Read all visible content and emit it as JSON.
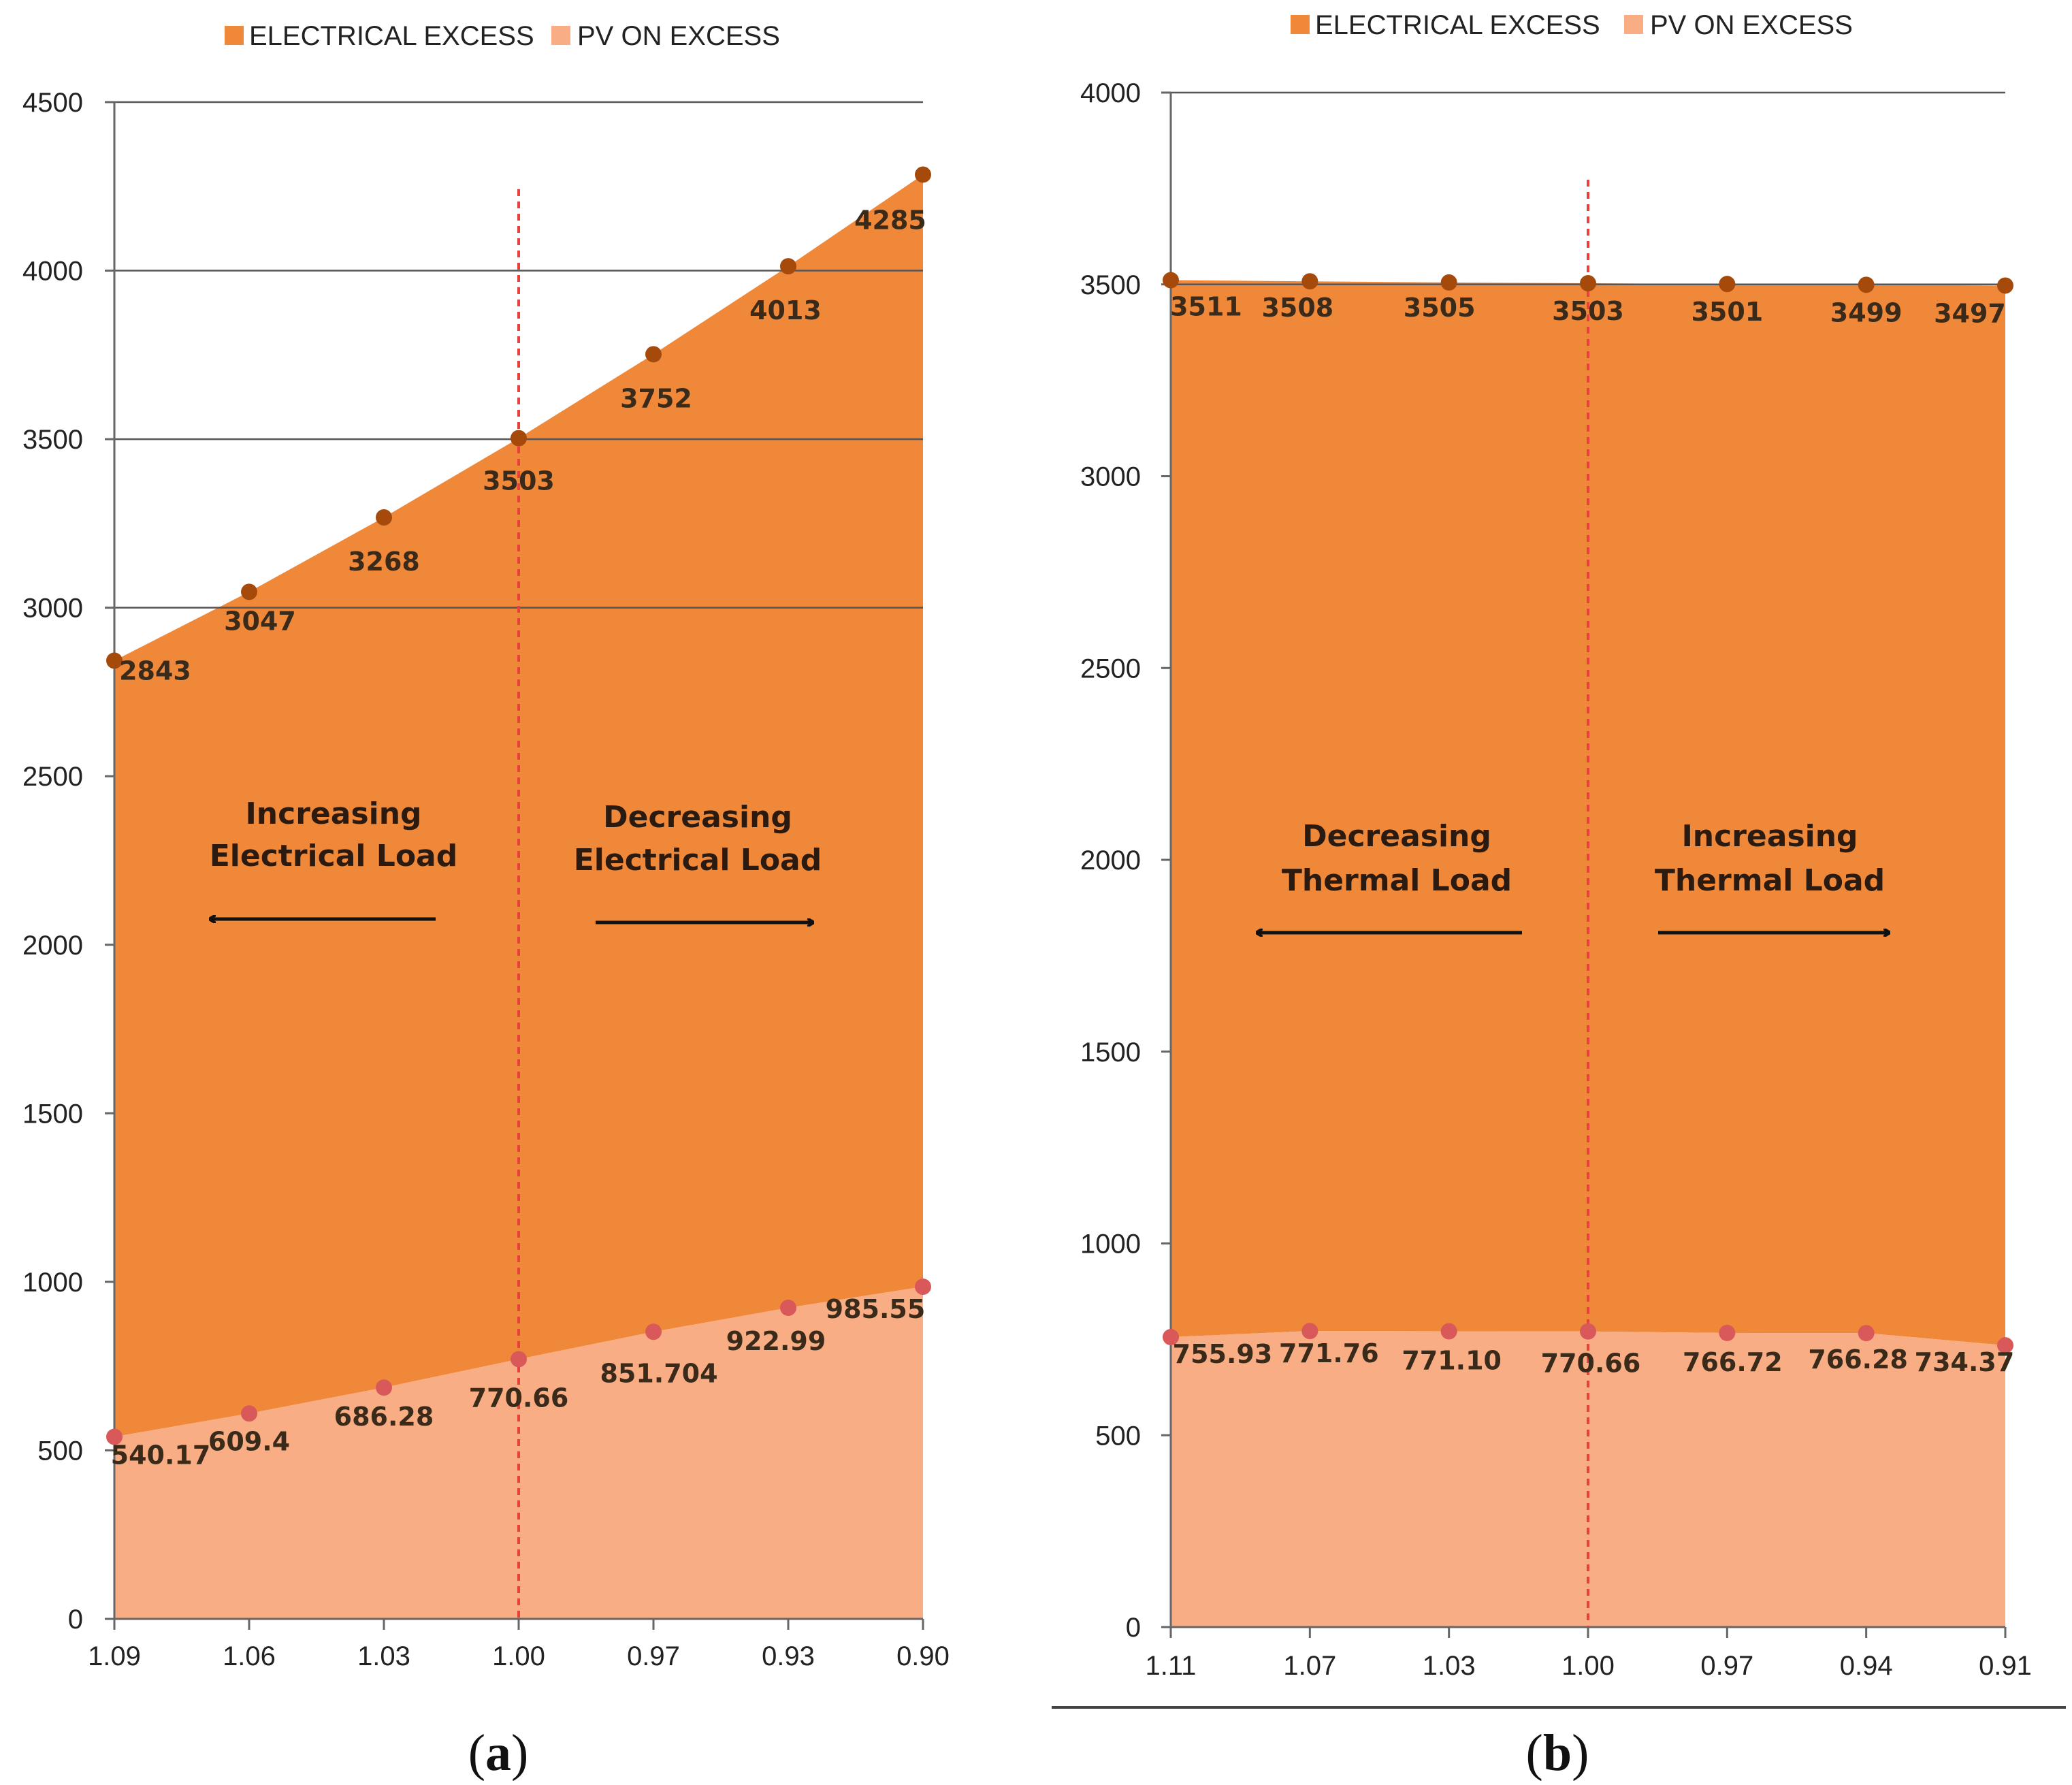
{
  "legend": {
    "electrical_excess": "ELECTRICAL EXCESS",
    "pv_on_excess": "PV ON EXCESS"
  },
  "colors": {
    "electrical_excess_fill": "#F0883A",
    "pv_on_excess_fill": "#F9AD84",
    "electrical_marker": "#A64A0C",
    "pv_marker": "#D9595A",
    "divider": "#E8403A",
    "axis": "#666666"
  },
  "chart_data": [
    {
      "panel": "a",
      "panel_label": "(a)",
      "panel_letter": "a",
      "type": "area",
      "title": "",
      "xlabel": "",
      "ylabel": "",
      "ylim": [
        0,
        4500
      ],
      "yticks": [
        0,
        500,
        1000,
        1500,
        2000,
        2500,
        3000,
        3500,
        4000,
        4500
      ],
      "categories": [
        "1.09",
        "1.06",
        "1.03",
        "1.00",
        "0.97",
        "0.93",
        "0.90"
      ],
      "series": [
        {
          "name": "ELECTRICAL EXCESS",
          "values": [
            2843,
            3047,
            3268,
            3503,
            3752,
            4013,
            4285
          ],
          "labels": [
            "2843",
            "3047",
            "3268",
            "3503",
            "3752",
            "4013",
            "4285"
          ]
        },
        {
          "name": "PV ON EXCESS",
          "values": [
            540.17,
            609.4,
            686.28,
            770.66,
            851.704,
            922.99,
            985.55
          ],
          "labels": [
            "540.17",
            "609.4",
            "686.28",
            "770.66",
            "851.704",
            "922.99",
            "985.55"
          ]
        }
      ],
      "gridlines_y": [
        3000,
        3500,
        4000,
        4500
      ],
      "divider_at": "1.00",
      "annotations": {
        "left": [
          "Increasing",
          "Electrical Load"
        ],
        "right": [
          "Decreasing",
          "Electrical Load"
        ]
      }
    },
    {
      "panel": "b",
      "panel_label": "(b)",
      "panel_letter": "b",
      "type": "area",
      "title": "",
      "xlabel": "",
      "ylabel": "",
      "ylim": [
        0,
        4000
      ],
      "yticks": [
        0,
        500,
        1000,
        1500,
        2000,
        2500,
        3000,
        3500,
        4000
      ],
      "categories": [
        "1.11",
        "1.07",
        "1.03",
        "1.00",
        "0.97",
        "0.94",
        "0.91"
      ],
      "series": [
        {
          "name": "ELECTRICAL EXCESS",
          "values": [
            3511,
            3508,
            3505,
            3503,
            3501,
            3499,
            3497
          ],
          "labels": [
            "3511",
            "3508",
            "3505",
            "3503",
            "3501",
            "3499",
            "3497"
          ]
        },
        {
          "name": "PV ON EXCESS",
          "values": [
            755.93,
            771.76,
            771.1,
            770.66,
            766.72,
            766.28,
            734.37
          ],
          "labels": [
            "755.93",
            "771.76",
            "771.10",
            "770.66",
            "766.72",
            "766.28",
            "734.37"
          ]
        }
      ],
      "gridlines_y": [
        3500,
        4000
      ],
      "divider_at": "1.00",
      "annotations": {
        "left": [
          "Decreasing",
          "Thermal Load"
        ],
        "right": [
          "Increasing",
          "Thermal Load"
        ]
      }
    }
  ]
}
